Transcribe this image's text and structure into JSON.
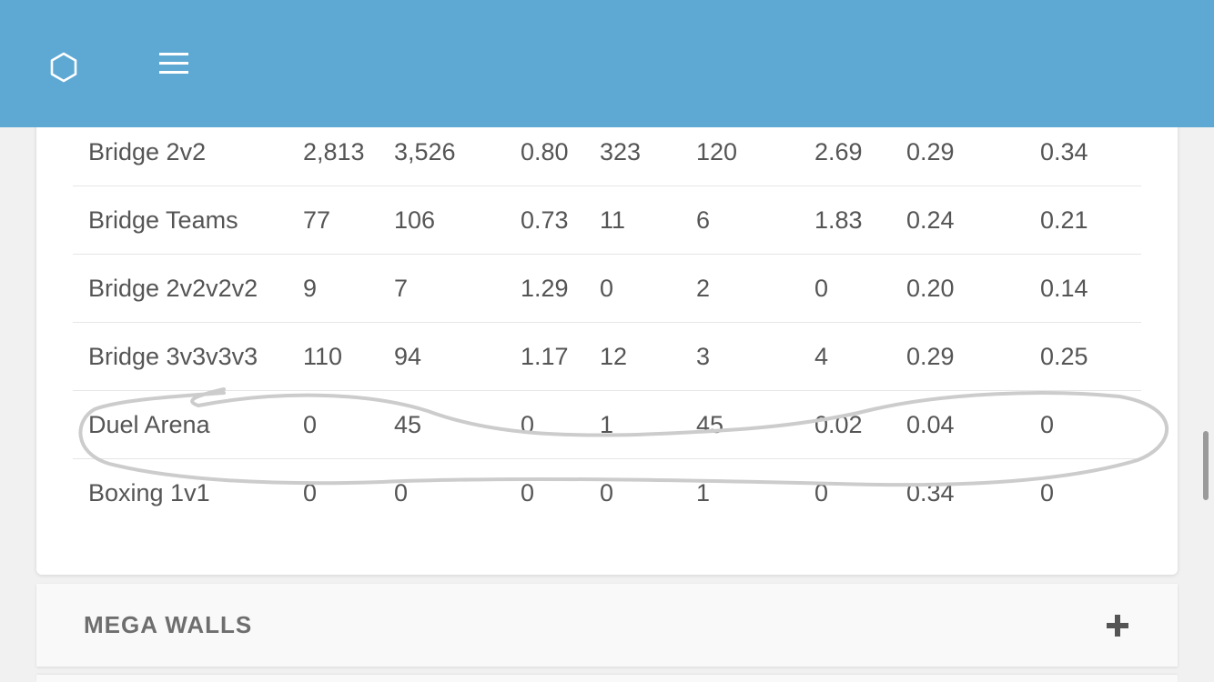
{
  "header": {
    "logo_icon": "hexagon-icon",
    "menu_icon": "hamburger-menu-icon",
    "bar_color": "#5ea9d4"
  },
  "stats_table": {
    "rows": [
      {
        "mode": "Bridge 2v2",
        "v1": "2,813",
        "v2": "3,526",
        "v3": "0.80",
        "v4": "323",
        "v5": "120",
        "v6": "2.69",
        "v7": "0.29",
        "v8": "0.34"
      },
      {
        "mode": "Bridge Teams",
        "v1": "77",
        "v2": "106",
        "v3": "0.73",
        "v4": "11",
        "v5": "6",
        "v6": "1.83",
        "v7": "0.24",
        "v8": "0.21"
      },
      {
        "mode": "Bridge 2v2v2v2",
        "v1": "9",
        "v2": "7",
        "v3": "1.29",
        "v4": "0",
        "v5": "2",
        "v6": "0",
        "v7": "0.20",
        "v8": "0.14"
      },
      {
        "mode": "Bridge 3v3v3v3",
        "v1": "110",
        "v2": "94",
        "v3": "1.17",
        "v4": "12",
        "v5": "3",
        "v6": "4",
        "v7": "0.29",
        "v8": "0.25"
      },
      {
        "mode": "Duel Arena",
        "v1": "0",
        "v2": "45",
        "v3": "0",
        "v4": "1",
        "v5": "45",
        "v6": "0.02",
        "v7": "0.04",
        "v8": "0"
      },
      {
        "mode": "Boxing 1v1",
        "v1": "0",
        "v2": "0",
        "v3": "0",
        "v4": "0",
        "v5": "1",
        "v6": "0",
        "v7": "0.34",
        "v8": "0"
      }
    ]
  },
  "sections": {
    "mega_walls": {
      "title": "MEGA WALLS",
      "expand_icon": "plus-icon"
    }
  }
}
